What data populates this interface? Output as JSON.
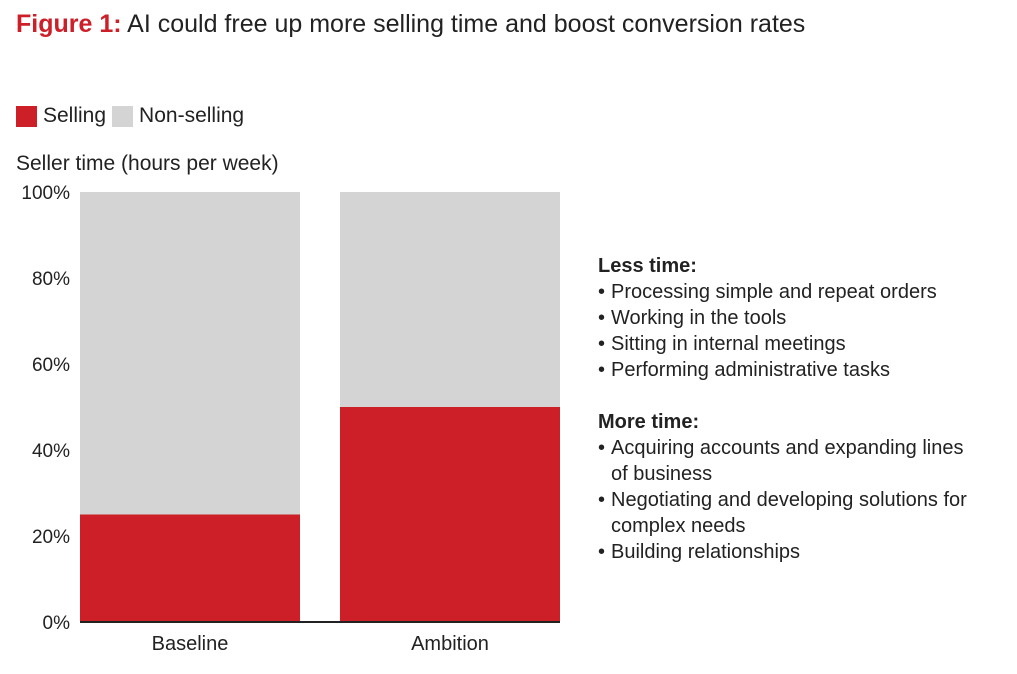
{
  "figure": {
    "label": "Figure 1:",
    "title": "AI could free up more selling time and boost conversion rates"
  },
  "colors": {
    "accent": "#cc1f28",
    "selling": "#cc1f28",
    "non_selling": "#d4d4d4",
    "text": "#222222"
  },
  "chart_data": {
    "type": "bar",
    "stacked": true,
    "title": "",
    "ylabel": "Seller time (hours per week)",
    "xlabel": "",
    "categories": [
      "Baseline",
      "Ambition"
    ],
    "series": [
      {
        "name": "Selling",
        "values": [
          25,
          50
        ]
      },
      {
        "name": "Non-selling",
        "values": [
          75,
          50
        ]
      }
    ],
    "ylim": [
      0,
      100
    ],
    "yticks": [
      0,
      20,
      40,
      60,
      80,
      100
    ],
    "ytick_labels": [
      "0%",
      "20%",
      "40%",
      "60%",
      "80%",
      "100%"
    ],
    "grid": false,
    "legend_position": "top-left"
  },
  "notes": {
    "less_heading": "Less time:",
    "less_items": [
      "Processing simple and repeat orders",
      "Working in the tools",
      "Sitting in internal meetings",
      "Performing administrative tasks"
    ],
    "more_heading": "More time:",
    "more_items": [
      "Acquiring accounts and expanding lines of business",
      "Negotiating and developing solutions for complex needs",
      "Building relationships"
    ]
  }
}
